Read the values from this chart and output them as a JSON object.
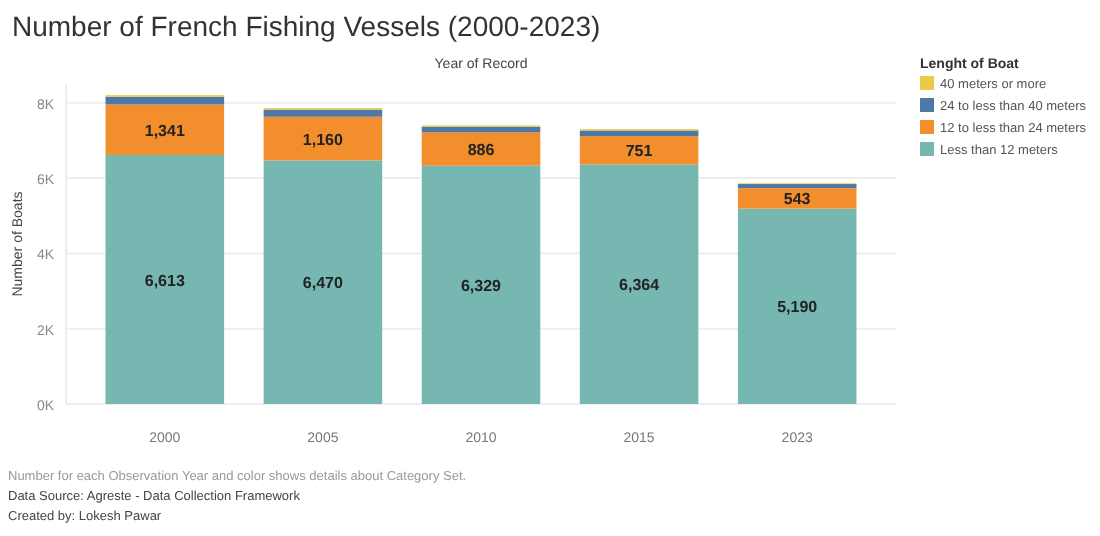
{
  "chart_data": {
    "type": "bar",
    "title": "Number of French Fishing Vessels (2000-2023)",
    "xlabel": "Year of Record",
    "ylabel": "Number of Boats",
    "legend_title": "Lenght of Boat",
    "categories": [
      "2000",
      "2005",
      "2010",
      "2015",
      "2023"
    ],
    "stacked": true,
    "series": [
      {
        "name": "Less than 12 meters",
        "color": "#76b7b2",
        "values": [
          6613,
          6470,
          6329,
          6364,
          5190
        ],
        "value_labels": [
          "6,613",
          "6,470",
          "6,329",
          "6,364",
          "5,190"
        ]
      },
      {
        "name": "12 to less than 24 meters",
        "color": "#f28e2b",
        "values": [
          1341,
          1160,
          886,
          751,
          543
        ],
        "value_labels": [
          "1,341",
          "1,160",
          "886",
          "751",
          "543"
        ]
      },
      {
        "name": "24 to less than 40 meters",
        "color": "#4e79a7",
        "values": [
          210,
          190,
          150,
          150,
          110
        ]
      },
      {
        "name": "40 meters or more",
        "color": "#edc948",
        "values": [
          40,
          40,
          35,
          35,
          20
        ]
      }
    ],
    "ylim": [
      0,
      8500
    ],
    "yticks": [
      {
        "value": 0,
        "label": "0K"
      },
      {
        "value": 2000,
        "label": "2K"
      },
      {
        "value": 4000,
        "label": "4K"
      },
      {
        "value": 6000,
        "label": "6K"
      },
      {
        "value": 8000,
        "label": "8K"
      }
    ],
    "grid": "y",
    "legend": "top right",
    "annotations": [
      "Number for each Observation Year and color shows details about Category Set.",
      "Data Source: Agreste - Data Collection Framework",
      "Created by: Lokesh Pawar"
    ]
  }
}
